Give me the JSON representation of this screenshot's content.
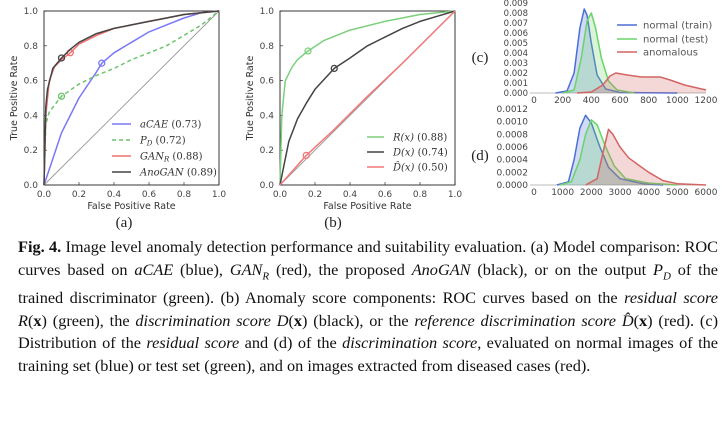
{
  "chart_data": [
    {
      "id": "a",
      "panel_label": "(a)",
      "type": "line",
      "xlabel": "False Positive Rate",
      "ylabel": "True Positive Rate",
      "xlim": [
        0,
        1
      ],
      "ylim": [
        0,
        1
      ],
      "xticks": [
        "0.0",
        "0.2",
        "0.4",
        "0.6",
        "0.8",
        "1.0"
      ],
      "yticks": [
        "0.0",
        "0.2",
        "0.4",
        "0.6",
        "0.8",
        "1.0"
      ],
      "diagonal": true,
      "legend": "bottom-right",
      "series": [
        {
          "name": "aCAE",
          "sub": "",
          "auc": "(0.73)",
          "color": "#7a78f5",
          "dash": false,
          "marker": [
            0.33,
            0.7
          ],
          "points": [
            [
              0,
              0
            ],
            [
              0.05,
              0.15
            ],
            [
              0.1,
              0.3
            ],
            [
              0.2,
              0.5
            ],
            [
              0.3,
              0.65
            ],
            [
              0.33,
              0.7
            ],
            [
              0.4,
              0.76
            ],
            [
              0.5,
              0.82
            ],
            [
              0.6,
              0.88
            ],
            [
              0.7,
              0.92
            ],
            [
              0.8,
              0.96
            ],
            [
              0.9,
              0.99
            ],
            [
              1,
              1
            ]
          ]
        },
        {
          "name": "P",
          "sub": "D",
          "auc": "(0.72)",
          "color": "#6cc46c",
          "dash": true,
          "marker": [
            0.1,
            0.51
          ],
          "points": [
            [
              0,
              0
            ],
            [
              0.01,
              0.35
            ],
            [
              0.03,
              0.42
            ],
            [
              0.1,
              0.51
            ],
            [
              0.2,
              0.58
            ],
            [
              0.3,
              0.63
            ],
            [
              0.4,
              0.67
            ],
            [
              0.5,
              0.72
            ],
            [
              0.6,
              0.76
            ],
            [
              0.7,
              0.8
            ],
            [
              0.8,
              0.86
            ],
            [
              0.9,
              0.92
            ],
            [
              1,
              1
            ]
          ]
        },
        {
          "name": "GAN",
          "sub": "R",
          "auc": "(0.88)",
          "color": "#f07070",
          "dash": false,
          "marker": [
            0.15,
            0.76
          ],
          "points": [
            [
              0,
              0
            ],
            [
              0.01,
              0.4
            ],
            [
              0.03,
              0.6
            ],
            [
              0.06,
              0.68
            ],
            [
              0.1,
              0.72
            ],
            [
              0.15,
              0.76
            ],
            [
              0.2,
              0.81
            ],
            [
              0.3,
              0.86
            ],
            [
              0.4,
              0.9
            ],
            [
              0.5,
              0.92
            ],
            [
              0.6,
              0.94
            ],
            [
              0.7,
              0.96
            ],
            [
              0.8,
              0.98
            ],
            [
              0.9,
              0.99
            ],
            [
              1,
              1
            ]
          ]
        },
        {
          "name": "AnoGAN",
          "sub": "",
          "auc": "(0.89)",
          "color": "#444444",
          "dash": false,
          "marker": [
            0.1,
            0.73
          ],
          "points": [
            [
              0,
              0
            ],
            [
              0.01,
              0.45
            ],
            [
              0.02,
              0.55
            ],
            [
              0.05,
              0.67
            ],
            [
              0.1,
              0.73
            ],
            [
              0.15,
              0.78
            ],
            [
              0.2,
              0.82
            ],
            [
              0.3,
              0.87
            ],
            [
              0.4,
              0.9
            ],
            [
              0.5,
              0.92
            ],
            [
              0.6,
              0.94
            ],
            [
              0.7,
              0.96
            ],
            [
              0.8,
              0.98
            ],
            [
              0.9,
              0.99
            ],
            [
              1,
              1
            ]
          ]
        }
      ]
    },
    {
      "id": "b",
      "panel_label": "(b)",
      "type": "line",
      "xlabel": "False Positive Rate",
      "ylabel": "True Positive Rate",
      "xlim": [
        0,
        1
      ],
      "ylim": [
        0,
        1
      ],
      "xticks": [
        "0.0",
        "0.2",
        "0.4",
        "0.6",
        "0.8",
        "1.0"
      ],
      "yticks": [
        "0.0",
        "0.2",
        "0.4",
        "0.6",
        "0.8",
        "1.0"
      ],
      "diagonal": true,
      "legend": "bottom-right",
      "series": [
        {
          "name": "R(x)",
          "sub": "",
          "auc": "(0.88)",
          "color": "#7ccf7c",
          "dash": false,
          "marker": [
            0.16,
            0.77
          ],
          "points": [
            [
              0,
              0
            ],
            [
              0.01,
              0.4
            ],
            [
              0.03,
              0.6
            ],
            [
              0.07,
              0.68
            ],
            [
              0.1,
              0.72
            ],
            [
              0.16,
              0.77
            ],
            [
              0.25,
              0.83
            ],
            [
              0.4,
              0.89
            ],
            [
              0.6,
              0.94
            ],
            [
              0.8,
              0.98
            ],
            [
              1,
              1
            ]
          ]
        },
        {
          "name": "D(x)",
          "sub": "",
          "auc": "(0.74)",
          "color": "#444444",
          "dash": false,
          "marker": [
            0.31,
            0.67
          ],
          "points": [
            [
              0,
              0
            ],
            [
              0.02,
              0.1
            ],
            [
              0.05,
              0.25
            ],
            [
              0.1,
              0.38
            ],
            [
              0.15,
              0.47
            ],
            [
              0.2,
              0.55
            ],
            [
              0.31,
              0.67
            ],
            [
              0.4,
              0.73
            ],
            [
              0.5,
              0.8
            ],
            [
              0.6,
              0.85
            ],
            [
              0.7,
              0.9
            ],
            [
              0.8,
              0.94
            ],
            [
              0.9,
              0.97
            ],
            [
              1,
              1
            ]
          ]
        },
        {
          "name": "D̂(x)",
          "sub": "",
          "auc": "(0.50)",
          "color": "#f07878",
          "dash": false,
          "marker": [
            0.15,
            0.17
          ],
          "points": [
            [
              0,
              0
            ],
            [
              0.15,
              0.17
            ],
            [
              0.3,
              0.31
            ],
            [
              0.5,
              0.51
            ],
            [
              0.7,
              0.7
            ],
            [
              1,
              1
            ]
          ]
        }
      ]
    },
    {
      "id": "c",
      "panel_label": "(c)",
      "type": "area",
      "xlim": [
        0,
        1200
      ],
      "ylim": [
        0,
        0.009
      ],
      "xticks": [
        "0",
        "200",
        "400",
        "600",
        "800",
        "1000",
        "1200"
      ],
      "yticks": [
        "0.000",
        "0.001",
        "0.002",
        "0.003",
        "0.004",
        "0.005",
        "0.006",
        "0.007",
        "0.008",
        "0.009"
      ],
      "legend": "top-right",
      "series": [
        {
          "name": "normal (train)",
          "color": "#4c6fd6",
          "points": [
            [
              150,
              0
            ],
            [
              230,
              0.0002
            ],
            [
              280,
              0.002
            ],
            [
              320,
              0.0065
            ],
            [
              350,
              0.0084
            ],
            [
              370,
              0.0078
            ],
            [
              400,
              0.005
            ],
            [
              440,
              0.0018
            ],
            [
              500,
              0.0004
            ],
            [
              600,
              5e-05
            ],
            [
              1000,
              0
            ]
          ]
        },
        {
          "name": "normal (test)",
          "color": "#6bd36b",
          "points": [
            [
              200,
              0
            ],
            [
              280,
              0.0003
            ],
            [
              330,
              0.0035
            ],
            [
              370,
              0.0072
            ],
            [
              400,
              0.008
            ],
            [
              430,
              0.0065
            ],
            [
              470,
              0.0035
            ],
            [
              520,
              0.0012
            ],
            [
              580,
              0.0003
            ],
            [
              700,
              0
            ]
          ]
        },
        {
          "name": "anomalous",
          "color": "#d46464",
          "points": [
            [
              300,
              0
            ],
            [
              400,
              0.0001
            ],
            [
              480,
              0.0008
            ],
            [
              530,
              0.0017
            ],
            [
              570,
              0.002
            ],
            [
              650,
              0.0018
            ],
            [
              750,
              0.0016
            ],
            [
              880,
              0.0016
            ],
            [
              950,
              0.0013
            ],
            [
              1050,
              0.0008
            ],
            [
              1200,
              0.0003
            ]
          ]
        }
      ]
    },
    {
      "id": "d",
      "panel_label": "(d)",
      "type": "area",
      "xlim": [
        0,
        6000
      ],
      "ylim": [
        0,
        0.0012
      ],
      "xticks": [
        "0",
        "1000",
        "2000",
        "3000",
        "4000",
        "5000",
        "6000"
      ],
      "yticks": [
        "0.0000",
        "0.0002",
        "0.0004",
        "0.0006",
        "0.0008",
        "0.0010",
        "0.0012"
      ],
      "series": [
        {
          "name": "normal (train)",
          "color": "#4c6fd6",
          "points": [
            [
              800,
              0
            ],
            [
              1200,
              5e-05
            ],
            [
              1400,
              0.0004
            ],
            [
              1600,
              0.0009
            ],
            [
              1800,
              0.0011
            ],
            [
              2000,
              0.00098
            ],
            [
              2300,
              0.0006
            ],
            [
              2600,
              0.00028
            ],
            [
              3000,
              0.0001
            ],
            [
              3800,
              2e-05
            ],
            [
              4500,
              0
            ]
          ]
        },
        {
          "name": "normal (test)",
          "color": "#6bd36b",
          "points": [
            [
              900,
              0
            ],
            [
              1300,
              5e-05
            ],
            [
              1600,
              0.0004
            ],
            [
              1800,
              0.0008
            ],
            [
              2000,
              0.00103
            ],
            [
              2200,
              0.00095
            ],
            [
              2500,
              0.0006
            ],
            [
              2800,
              0.0003
            ],
            [
              3200,
              0.0001
            ],
            [
              4000,
              3e-05
            ],
            [
              5000,
              0
            ]
          ]
        },
        {
          "name": "anomalous",
          "color": "#d46464",
          "points": [
            [
              1800,
              0
            ],
            [
              2200,
              0.0001
            ],
            [
              2400,
              0.0005
            ],
            [
              2600,
              0.00088
            ],
            [
              2750,
              0.0008
            ],
            [
              3000,
              0.0006
            ],
            [
              3300,
              0.00043
            ],
            [
              3600,
              0.00033
            ],
            [
              4000,
              0.0002
            ],
            [
              4500,
              7e-05
            ],
            [
              5000,
              2e-05
            ],
            [
              6000,
              0
            ]
          ]
        }
      ]
    }
  ],
  "caption": [
    {
      "t": "Fig. 4.",
      "s": "b"
    },
    {
      "t": " Image level anomaly detection performance and suitability evaluation. (a) Model comparison: ROC curves based on ",
      "s": ""
    },
    {
      "t": "aCAE",
      "s": "i"
    },
    {
      "t": " (blue), ",
      "s": ""
    },
    {
      "t": "GAN",
      "s": "i"
    },
    {
      "t": "R",
      "s": "sub"
    },
    {
      "t": " (red), the proposed ",
      "s": ""
    },
    {
      "t": "AnoGAN",
      "s": "i"
    },
    {
      "t": " (black), or on the output ",
      "s": ""
    },
    {
      "t": "P",
      "s": "i"
    },
    {
      "t": "D",
      "s": "sub"
    },
    {
      "t": " of the trained discriminator (green). (b) Anomaly score components: ROC curves based on the ",
      "s": ""
    },
    {
      "t": "residual score R",
      "s": "i"
    },
    {
      "t": "(",
      "s": ""
    },
    {
      "t": "x",
      "s": "bf"
    },
    {
      "t": ")",
      "s": ""
    },
    {
      "t": " (green), the ",
      "s": ""
    },
    {
      "t": "discrimination score D",
      "s": "i"
    },
    {
      "t": "(",
      "s": ""
    },
    {
      "t": "x",
      "s": "bf"
    },
    {
      "t": ")",
      "s": ""
    },
    {
      "t": " (black), or the ",
      "s": ""
    },
    {
      "t": "reference discrimination score D̂",
      "s": "i"
    },
    {
      "t": "(",
      "s": ""
    },
    {
      "t": "x",
      "s": "bf"
    },
    {
      "t": ")",
      "s": ""
    },
    {
      "t": " (red). (c) Distribution of the ",
      "s": ""
    },
    {
      "t": "residual score",
      "s": "i"
    },
    {
      "t": " and (d) of the ",
      "s": ""
    },
    {
      "t": "discrimination score",
      "s": "i"
    },
    {
      "t": ", evaluated on normal images of the training set (blue) or test set (green), and on images extracted from diseased cases (red).",
      "s": ""
    }
  ]
}
